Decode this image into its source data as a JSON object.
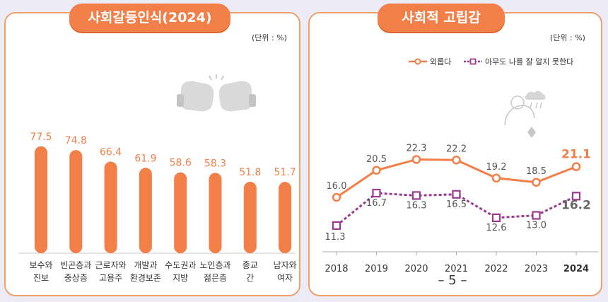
{
  "colors": {
    "accent": "#f27e48",
    "series2": "#9b3a8e",
    "panel_border": "#f0a06e",
    "bg": "#ecebf6"
  },
  "left": {
    "title": "사회갈등인식(2024)",
    "unit": "(단위 : %)",
    "icon": "boxing-gloves-icon"
  },
  "right": {
    "title": "사회적 고립감",
    "unit": "(단위 : %)",
    "icon": "lonely-person-icon",
    "legend": [
      "외롭다",
      "아무도 나를 잘 알지 못한다"
    ]
  },
  "page_number": "– 5 –",
  "chart_data": [
    {
      "type": "bar",
      "title": "사회갈등인식(2024)",
      "categories": [
        [
          "보수와",
          "진보"
        ],
        [
          "빈곤층과",
          "중상층"
        ],
        [
          "근로자와",
          "고용주"
        ],
        [
          "개발과",
          "환경보존"
        ],
        [
          "수도권과",
          "지방"
        ],
        [
          "노인층과",
          "젊은층"
        ],
        [
          "종교",
          "간"
        ],
        [
          "남자와",
          "여자"
        ]
      ],
      "values": [
        77.5,
        74.8,
        66.4,
        61.9,
        58.6,
        58.3,
        51.8,
        51.7
      ],
      "value_labels": [
        "77.5",
        "74.8",
        "66.4",
        "61.9",
        "58.6",
        "58.3",
        "51.8",
        "51.7"
      ],
      "ylim": [
        0,
        100
      ]
    },
    {
      "type": "line",
      "title": "사회적 고립감",
      "x": [
        "2018",
        "2019",
        "2020",
        "2021",
        "2022",
        "2023",
        "2024"
      ],
      "series": [
        {
          "name": "외롭다",
          "values": [
            16.0,
            20.5,
            22.3,
            22.2,
            19.2,
            18.5,
            21.1
          ],
          "labels": [
            "16.0",
            "20.5",
            "22.3",
            "22.2",
            "19.2",
            "18.5",
            "21.1"
          ],
          "color": "#f27e48"
        },
        {
          "name": "아무도 나를 잘 알지 못한다",
          "values": [
            11.3,
            16.7,
            16.3,
            16.5,
            12.6,
            13.0,
            16.2
          ],
          "labels": [
            "11.3",
            "16.7",
            "16.3",
            "16.5",
            "12.6",
            "13.0",
            "16.2"
          ],
          "color": "#9b3a8e"
        }
      ],
      "ylim": [
        5,
        28
      ]
    }
  ]
}
